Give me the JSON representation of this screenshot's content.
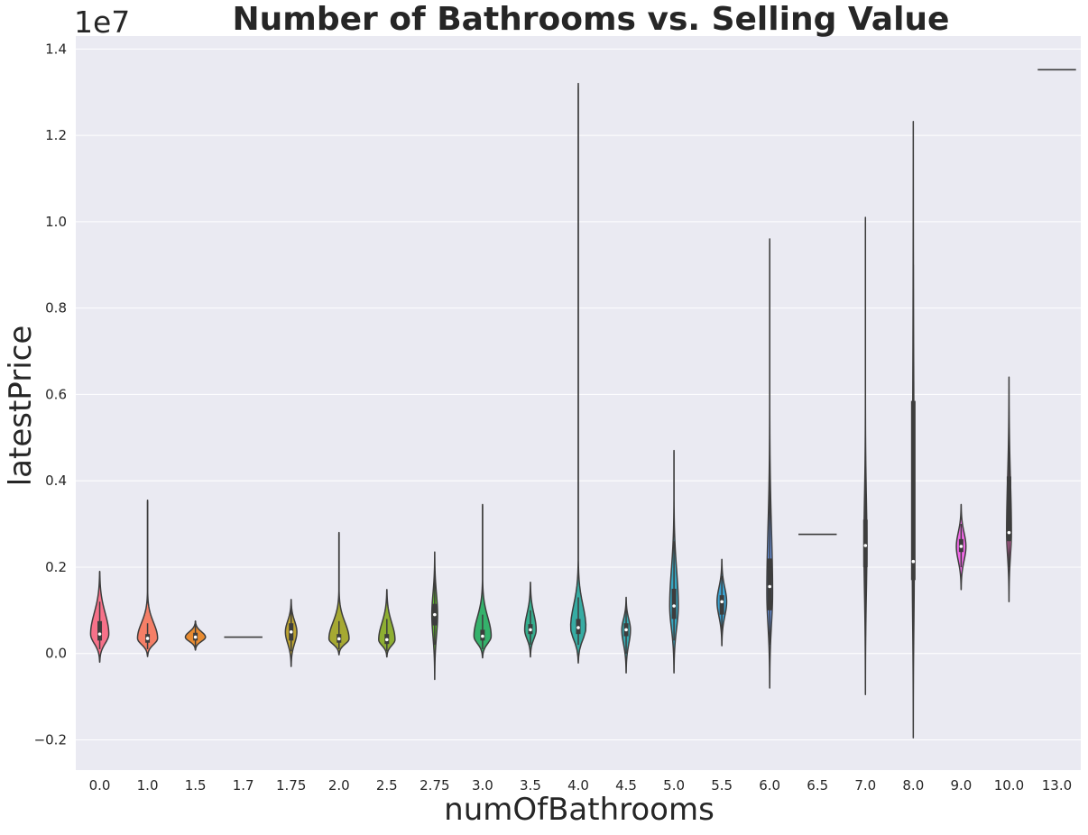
{
  "chart_data": {
    "type": "violin",
    "title": "Number of Bathrooms vs. Selling Value",
    "xlabel": "numOfBathrooms",
    "ylabel": "latestPrice",
    "y_offset_label": "1e7",
    "ylim": [
      -0.27,
      1.43
    ],
    "y_ticks": [
      -0.2,
      0.0,
      0.2,
      0.4,
      0.6,
      0.8,
      1.0,
      1.2,
      1.4
    ],
    "y_tick_labels": [
      "−0.2",
      "0.0",
      "0.2",
      "0.4",
      "0.6",
      "0.8",
      "1.0",
      "1.2",
      "1.4"
    ],
    "grid": true,
    "categories": [
      "0.0",
      "1.0",
      "1.5",
      "1.7",
      "1.75",
      "2.0",
      "2.5",
      "2.75",
      "3.0",
      "3.5",
      "4.0",
      "4.5",
      "5.0",
      "5.5",
      "6.0",
      "6.5",
      "7.0",
      "8.0",
      "9.0",
      "10.0",
      "13.0"
    ],
    "colors": [
      "#f77189",
      "#f57f67",
      "#e88b31",
      "#d09a32",
      "#bba332",
      "#a6a932",
      "#8eaf32",
      "#62b632",
      "#34b16b",
      "#35ae8e",
      "#36aca3",
      "#37a9b1",
      "#38a7c2",
      "#3ba3d2",
      "#6a9cf4",
      "#9d91f5",
      "#b988f4",
      "#d47cf4",
      "#f069e7",
      "#f56bbf",
      "#f66fa0"
    ],
    "violins": [
      {
        "min": -0.02,
        "max": 0.19,
        "q1": 0.03,
        "median": 0.045,
        "q3": 0.075,
        "wmin": 0.01,
        "wmax": 0.12,
        "mode": 0.045,
        "width": 0.38
      },
      {
        "min": -0.007,
        "max": 0.355,
        "q1": 0.025,
        "median": 0.035,
        "q3": 0.045,
        "wmin": 0.01,
        "wmax": 0.07,
        "mode": 0.035,
        "width": 0.42
      },
      {
        "min": 0.008,
        "max": 0.075,
        "q1": 0.03,
        "median": 0.038,
        "q3": 0.048,
        "wmin": 0.015,
        "wmax": 0.07,
        "mode": 0.038,
        "width": 0.42
      },
      {
        "min": 0.038,
        "max": 0.038,
        "q1": 0.038,
        "median": 0.038,
        "q3": 0.038,
        "wmin": 0.038,
        "wmax": 0.038,
        "mode": 0.038,
        "width": 0.8
      },
      {
        "min": -0.03,
        "max": 0.125,
        "q1": 0.03,
        "median": 0.05,
        "q3": 0.07,
        "wmin": 0.005,
        "wmax": 0.11,
        "mode": 0.05,
        "width": 0.24
      },
      {
        "min": -0.003,
        "max": 0.28,
        "q1": 0.025,
        "median": 0.034,
        "q3": 0.045,
        "wmin": 0.01,
        "wmax": 0.075,
        "mode": 0.034,
        "width": 0.42
      },
      {
        "min": -0.008,
        "max": 0.148,
        "q1": 0.022,
        "median": 0.032,
        "q3": 0.045,
        "wmin": 0.005,
        "wmax": 0.08,
        "mode": 0.032,
        "width": 0.34
      },
      {
        "min": -0.06,
        "max": 0.235,
        "q1": 0.065,
        "median": 0.09,
        "q3": 0.115,
        "wmin": 0.02,
        "wmax": 0.19,
        "mode": 0.09,
        "width": 0.12
      },
      {
        "min": -0.01,
        "max": 0.345,
        "q1": 0.03,
        "median": 0.04,
        "q3": 0.055,
        "wmin": 0.01,
        "wmax": 0.09,
        "mode": 0.04,
        "width": 0.36
      },
      {
        "min": -0.008,
        "max": 0.165,
        "q1": 0.045,
        "median": 0.055,
        "q3": 0.068,
        "wmin": 0.02,
        "wmax": 0.1,
        "mode": 0.055,
        "width": 0.24
      },
      {
        "min": -0.022,
        "max": 1.32,
        "q1": 0.045,
        "median": 0.06,
        "q3": 0.08,
        "wmin": 0.02,
        "wmax": 0.13,
        "mode": 0.06,
        "width": 0.32
      },
      {
        "min": -0.045,
        "max": 0.13,
        "q1": 0.04,
        "median": 0.055,
        "q3": 0.07,
        "wmin": 0.0,
        "wmax": 0.11,
        "mode": 0.055,
        "width": 0.18
      },
      {
        "min": -0.045,
        "max": 0.47,
        "q1": 0.08,
        "median": 0.11,
        "q3": 0.15,
        "wmin": 0.03,
        "wmax": 0.26,
        "mode": 0.11,
        "width": 0.18
      },
      {
        "min": 0.018,
        "max": 0.218,
        "q1": 0.09,
        "median": 0.12,
        "q3": 0.135,
        "wmin": 0.05,
        "wmax": 0.18,
        "mode": 0.12,
        "width": 0.2
      },
      {
        "min": -0.08,
        "max": 0.96,
        "q1": 0.1,
        "median": 0.155,
        "q3": 0.22,
        "wmin": 0.02,
        "wmax": 0.4,
        "mode": 0.14,
        "width": 0.12
      },
      {
        "min": 0.276,
        "max": 0.276,
        "q1": 0.276,
        "median": 0.276,
        "q3": 0.276,
        "wmin": 0.276,
        "wmax": 0.276,
        "mode": 0.276,
        "width": 0.8
      },
      {
        "min": -0.095,
        "max": 1.01,
        "q1": 0.2,
        "median": 0.25,
        "q3": 0.31,
        "wmin": 0.04,
        "wmax": 0.43,
        "mode": 0.25,
        "width": 0.06
      },
      {
        "min": -0.195,
        "max": 1.232,
        "q1": 0.17,
        "median": 0.213,
        "q3": 0.585,
        "wmin": 0.0,
        "wmax": 0.9,
        "mode": 0.2,
        "width": 0.04
      },
      {
        "min": 0.148,
        "max": 0.345,
        "q1": 0.235,
        "median": 0.248,
        "q3": 0.265,
        "wmin": 0.2,
        "wmax": 0.3,
        "mode": 0.248,
        "width": 0.2
      },
      {
        "min": 0.12,
        "max": 0.64,
        "q1": 0.26,
        "median": 0.28,
        "q3": 0.41,
        "wmin": 0.2,
        "wmax": 0.5,
        "mode": 0.28,
        "width": 0.1
      },
      {
        "min": 1.352,
        "max": 1.352,
        "q1": 1.352,
        "median": 1.352,
        "q3": 1.352,
        "wmin": 1.352,
        "wmax": 1.352,
        "mode": 1.352,
        "width": 0.8
      }
    ]
  },
  "colors": {
    "plot_background": "#eaeaf2",
    "grid": "#ffffff",
    "outline": "#3d3d3d",
    "text": "#262626"
  }
}
